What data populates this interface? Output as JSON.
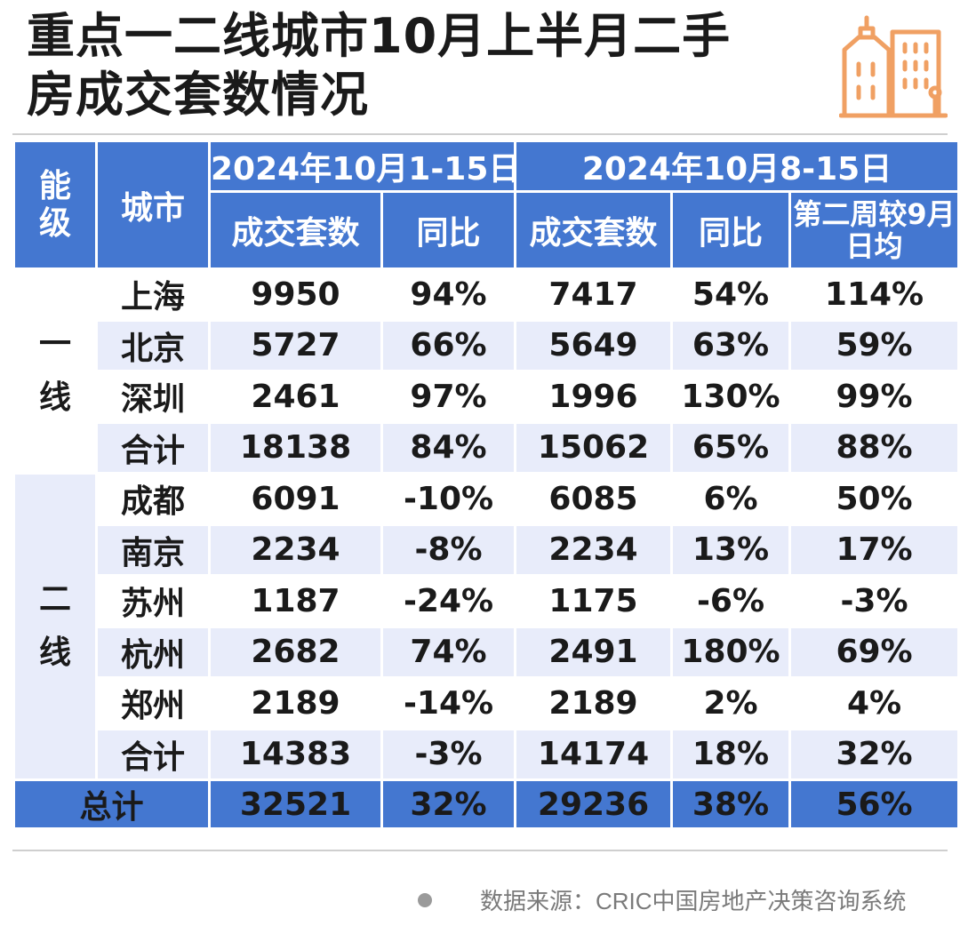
{
  "title": {
    "line1": "重点一二线城市10月上半月二手",
    "line2": "房成交套数情况"
  },
  "header": {
    "tier": "能级",
    "city": "城市",
    "period1": "2024年10月1-15日",
    "period2": "2024年10月8-15日",
    "sub": [
      "成交套数",
      "同比",
      "成交套数",
      "同比",
      "第二周较9月日均"
    ]
  },
  "tiers": [
    {
      "label": "一线",
      "rows": [
        {
          "city": "上海",
          "deals_1_15": "9950",
          "yoy_1_15": "94%",
          "deals_8_15": "7417",
          "yoy_8_15": "54%",
          "vs_sep_avg": "114%"
        },
        {
          "city": "北京",
          "deals_1_15": "5727",
          "yoy_1_15": "66%",
          "deals_8_15": "5649",
          "yoy_8_15": "63%",
          "vs_sep_avg": "59%"
        },
        {
          "city": "深圳",
          "deals_1_15": "2461",
          "yoy_1_15": "97%",
          "deals_8_15": "1996",
          "yoy_8_15": "130%",
          "vs_sep_avg": "99%"
        },
        {
          "city": "合计",
          "deals_1_15": "18138",
          "yoy_1_15": "84%",
          "deals_8_15": "15062",
          "yoy_8_15": "65%",
          "vs_sep_avg": "88%"
        }
      ]
    },
    {
      "label": "二线",
      "rows": [
        {
          "city": "成都",
          "deals_1_15": "6091",
          "yoy_1_15": "-10%",
          "deals_8_15": "6085",
          "yoy_8_15": "6%",
          "vs_sep_avg": "50%"
        },
        {
          "city": "南京",
          "deals_1_15": "2234",
          "yoy_1_15": "-8%",
          "deals_8_15": "2234",
          "yoy_8_15": "13%",
          "vs_sep_avg": "17%"
        },
        {
          "city": "苏州",
          "deals_1_15": "1187",
          "yoy_1_15": "-24%",
          "deals_8_15": "1175",
          "yoy_8_15": "-6%",
          "vs_sep_avg": "-3%"
        },
        {
          "city": "杭州",
          "deals_1_15": "2682",
          "yoy_1_15": "74%",
          "deals_8_15": "2491",
          "yoy_8_15": "180%",
          "vs_sep_avg": "69%"
        },
        {
          "city": "郑州",
          "deals_1_15": "2189",
          "yoy_1_15": "-14%",
          "deals_8_15": "2189",
          "yoy_8_15": "2%",
          "vs_sep_avg": "4%"
        },
        {
          "city": "合计",
          "deals_1_15": "14383",
          "yoy_1_15": "-3%",
          "deals_8_15": "14174",
          "yoy_8_15": "18%",
          "vs_sep_avg": "32%"
        }
      ]
    }
  ],
  "total": {
    "label": "总计",
    "deals_1_15": "32521",
    "yoy_1_15": "32%",
    "deals_8_15": "29236",
    "yoy_8_15": "38%",
    "vs_sep_avg": "56%"
  },
  "footer": {
    "source": "数据来源：CRIC中国房地产决策咨询系统"
  },
  "colors": {
    "header_blue": "#4477d0",
    "stripe": "#e8ecfa",
    "icon_orange": "#f0a063"
  },
  "icons": [
    "city-buildings-icon",
    "bullet-dot-icon"
  ],
  "chart_data": {
    "type": "table",
    "title": "重点一二线城市10月上半月二手房成交套数情况",
    "columns": [
      "能级",
      "城市",
      "2024年10月1-15日 成交套数",
      "2024年10月1-15日 同比",
      "2024年10月8-15日 成交套数",
      "2024年10月8-15日 同比",
      "第二周较9月日均"
    ],
    "rows": [
      [
        "一线",
        "上海",
        9950,
        "94%",
        7417,
        "54%",
        "114%"
      ],
      [
        "一线",
        "北京",
        5727,
        "66%",
        5649,
        "63%",
        "59%"
      ],
      [
        "一线",
        "深圳",
        2461,
        "97%",
        1996,
        "130%",
        "99%"
      ],
      [
        "一线",
        "合计",
        18138,
        "84%",
        15062,
        "65%",
        "88%"
      ],
      [
        "二线",
        "成都",
        6091,
        "-10%",
        6085,
        "6%",
        "50%"
      ],
      [
        "二线",
        "南京",
        2234,
        "-8%",
        2234,
        "13%",
        "17%"
      ],
      [
        "二线",
        "苏州",
        1187,
        "-24%",
        1175,
        "-6%",
        "-3%"
      ],
      [
        "二线",
        "杭州",
        2682,
        "74%",
        2491,
        "180%",
        "69%"
      ],
      [
        "二线",
        "郑州",
        2189,
        "-14%",
        2189,
        "2%",
        "4%"
      ],
      [
        "二线",
        "合计",
        14383,
        "-3%",
        14174,
        "18%",
        "32%"
      ],
      [
        "总计",
        "",
        32521,
        "32%",
        29236,
        "38%",
        "56%"
      ]
    ]
  }
}
